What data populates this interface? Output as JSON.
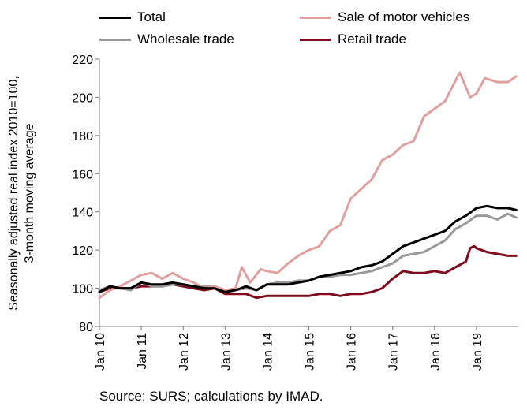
{
  "chart_data": {
    "type": "line",
    "x_categories": [
      "Jan 10",
      "Jan 11",
      "Jan 12",
      "Jan 13",
      "Jan 14",
      "Jan 15",
      "Jan 16",
      "Jan 17",
      "Jan 18",
      "Jan 19"
    ],
    "ylabel": "Seasonally adjusted real index 2010=100,\n3-month moving average",
    "ylim": [
      80,
      220
    ],
    "yticks": [
      80,
      100,
      120,
      140,
      160,
      180,
      200,
      220
    ],
    "grid": false,
    "legend_position": "top",
    "source": "Source: SURS; calculations by IMAD.",
    "series": [
      {
        "name": "Total",
        "color": "#000000",
        "width": 3,
        "points": [
          [
            2010.0,
            98
          ],
          [
            2010.25,
            101
          ],
          [
            2010.5,
            100
          ],
          [
            2010.75,
            100
          ],
          [
            2011.0,
            103
          ],
          [
            2011.25,
            102
          ],
          [
            2011.5,
            102
          ],
          [
            2011.75,
            103
          ],
          [
            2012.0,
            102
          ],
          [
            2012.25,
            101
          ],
          [
            2012.5,
            100
          ],
          [
            2012.75,
            100
          ],
          [
            2013.0,
            98
          ],
          [
            2013.25,
            99
          ],
          [
            2013.5,
            101
          ],
          [
            2013.75,
            99
          ],
          [
            2014.0,
            102
          ],
          [
            2014.25,
            102
          ],
          [
            2014.5,
            102
          ],
          [
            2014.75,
            103
          ],
          [
            2015.0,
            104
          ],
          [
            2015.25,
            106
          ],
          [
            2015.5,
            107
          ],
          [
            2015.75,
            108
          ],
          [
            2016.0,
            109
          ],
          [
            2016.25,
            111
          ],
          [
            2016.5,
            112
          ],
          [
            2016.75,
            114
          ],
          [
            2017.0,
            118
          ],
          [
            2017.25,
            122
          ],
          [
            2017.5,
            124
          ],
          [
            2017.75,
            126
          ],
          [
            2018.0,
            128
          ],
          [
            2018.25,
            130
          ],
          [
            2018.5,
            135
          ],
          [
            2018.75,
            138
          ],
          [
            2019.0,
            142
          ],
          [
            2019.25,
            143
          ],
          [
            2019.5,
            142
          ],
          [
            2019.75,
            142
          ],
          [
            2019.95,
            141
          ]
        ]
      },
      {
        "name": "Sale of motor vehicles",
        "color": "#e0a0a0",
        "width": 3,
        "points": [
          [
            2010.0,
            95
          ],
          [
            2010.25,
            99
          ],
          [
            2010.5,
            101
          ],
          [
            2010.75,
            104
          ],
          [
            2011.0,
            107
          ],
          [
            2011.25,
            108
          ],
          [
            2011.5,
            105
          ],
          [
            2011.75,
            108
          ],
          [
            2012.0,
            105
          ],
          [
            2012.25,
            103
          ],
          [
            2012.5,
            100
          ],
          [
            2012.75,
            101
          ],
          [
            2013.0,
            99
          ],
          [
            2013.25,
            100
          ],
          [
            2013.4,
            111
          ],
          [
            2013.6,
            103
          ],
          [
            2013.85,
            110
          ],
          [
            2014.0,
            109
          ],
          [
            2014.25,
            108
          ],
          [
            2014.5,
            113
          ],
          [
            2014.75,
            117
          ],
          [
            2015.0,
            120
          ],
          [
            2015.25,
            122
          ],
          [
            2015.5,
            130
          ],
          [
            2015.75,
            133
          ],
          [
            2016.0,
            147
          ],
          [
            2016.25,
            152
          ],
          [
            2016.5,
            157
          ],
          [
            2016.75,
            167
          ],
          [
            2017.0,
            170
          ],
          [
            2017.25,
            175
          ],
          [
            2017.5,
            177
          ],
          [
            2017.75,
            190
          ],
          [
            2018.0,
            194
          ],
          [
            2018.25,
            198
          ],
          [
            2018.6,
            213
          ],
          [
            2018.85,
            200
          ],
          [
            2019.0,
            202
          ],
          [
            2019.2,
            210
          ],
          [
            2019.5,
            208
          ],
          [
            2019.75,
            208
          ],
          [
            2019.95,
            211
          ]
        ]
      },
      {
        "name": "Wholesale trade",
        "color": "#999999",
        "width": 3,
        "points": [
          [
            2010.0,
            99
          ],
          [
            2010.25,
            101
          ],
          [
            2010.5,
            100
          ],
          [
            2010.75,
            99
          ],
          [
            2011.0,
            103
          ],
          [
            2011.25,
            101
          ],
          [
            2011.5,
            101
          ],
          [
            2011.75,
            102
          ],
          [
            2012.0,
            102
          ],
          [
            2012.25,
            101
          ],
          [
            2012.5,
            101
          ],
          [
            2012.75,
            101
          ],
          [
            2013.0,
            99
          ],
          [
            2013.25,
            99
          ],
          [
            2013.5,
            100
          ],
          [
            2013.75,
            99
          ],
          [
            2014.0,
            102
          ],
          [
            2014.25,
            103
          ],
          [
            2014.5,
            103
          ],
          [
            2014.75,
            104
          ],
          [
            2015.0,
            104
          ],
          [
            2015.25,
            106
          ],
          [
            2015.5,
            106
          ],
          [
            2015.75,
            107
          ],
          [
            2016.0,
            107
          ],
          [
            2016.25,
            108
          ],
          [
            2016.5,
            109
          ],
          [
            2016.75,
            111
          ],
          [
            2017.0,
            113
          ],
          [
            2017.25,
            117
          ],
          [
            2017.5,
            118
          ],
          [
            2017.75,
            119
          ],
          [
            2018.0,
            122
          ],
          [
            2018.25,
            125
          ],
          [
            2018.5,
            131
          ],
          [
            2018.75,
            134
          ],
          [
            2019.0,
            138
          ],
          [
            2019.25,
            138
          ],
          [
            2019.5,
            136
          ],
          [
            2019.75,
            139
          ],
          [
            2019.95,
            137
          ]
        ]
      },
      {
        "name": "Retail trade",
        "color": "#7f0b1e",
        "width": 3,
        "points": [
          [
            2010.0,
            98
          ],
          [
            2010.25,
            100
          ],
          [
            2010.5,
            100
          ],
          [
            2010.75,
            100
          ],
          [
            2011.0,
            101
          ],
          [
            2011.25,
            101
          ],
          [
            2011.5,
            101
          ],
          [
            2011.75,
            102
          ],
          [
            2012.0,
            101
          ],
          [
            2012.25,
            100
          ],
          [
            2012.5,
            99
          ],
          [
            2012.75,
            100
          ],
          [
            2013.0,
            97
          ],
          [
            2013.25,
            97
          ],
          [
            2013.5,
            97
          ],
          [
            2013.75,
            95
          ],
          [
            2014.0,
            96
          ],
          [
            2014.25,
            96
          ],
          [
            2014.5,
            96
          ],
          [
            2014.75,
            96
          ],
          [
            2015.0,
            96
          ],
          [
            2015.25,
            97
          ],
          [
            2015.5,
            97
          ],
          [
            2015.75,
            96
          ],
          [
            2016.0,
            97
          ],
          [
            2016.25,
            97
          ],
          [
            2016.5,
            98
          ],
          [
            2016.75,
            100
          ],
          [
            2017.0,
            105
          ],
          [
            2017.25,
            109
          ],
          [
            2017.5,
            108
          ],
          [
            2017.75,
            108
          ],
          [
            2018.0,
            109
          ],
          [
            2018.25,
            108
          ],
          [
            2018.5,
            111
          ],
          [
            2018.75,
            114
          ],
          [
            2018.85,
            121
          ],
          [
            2018.95,
            122
          ],
          [
            2019.0,
            121
          ],
          [
            2019.25,
            119
          ],
          [
            2019.5,
            118
          ],
          [
            2019.75,
            117
          ],
          [
            2019.95,
            117
          ]
        ]
      }
    ]
  }
}
